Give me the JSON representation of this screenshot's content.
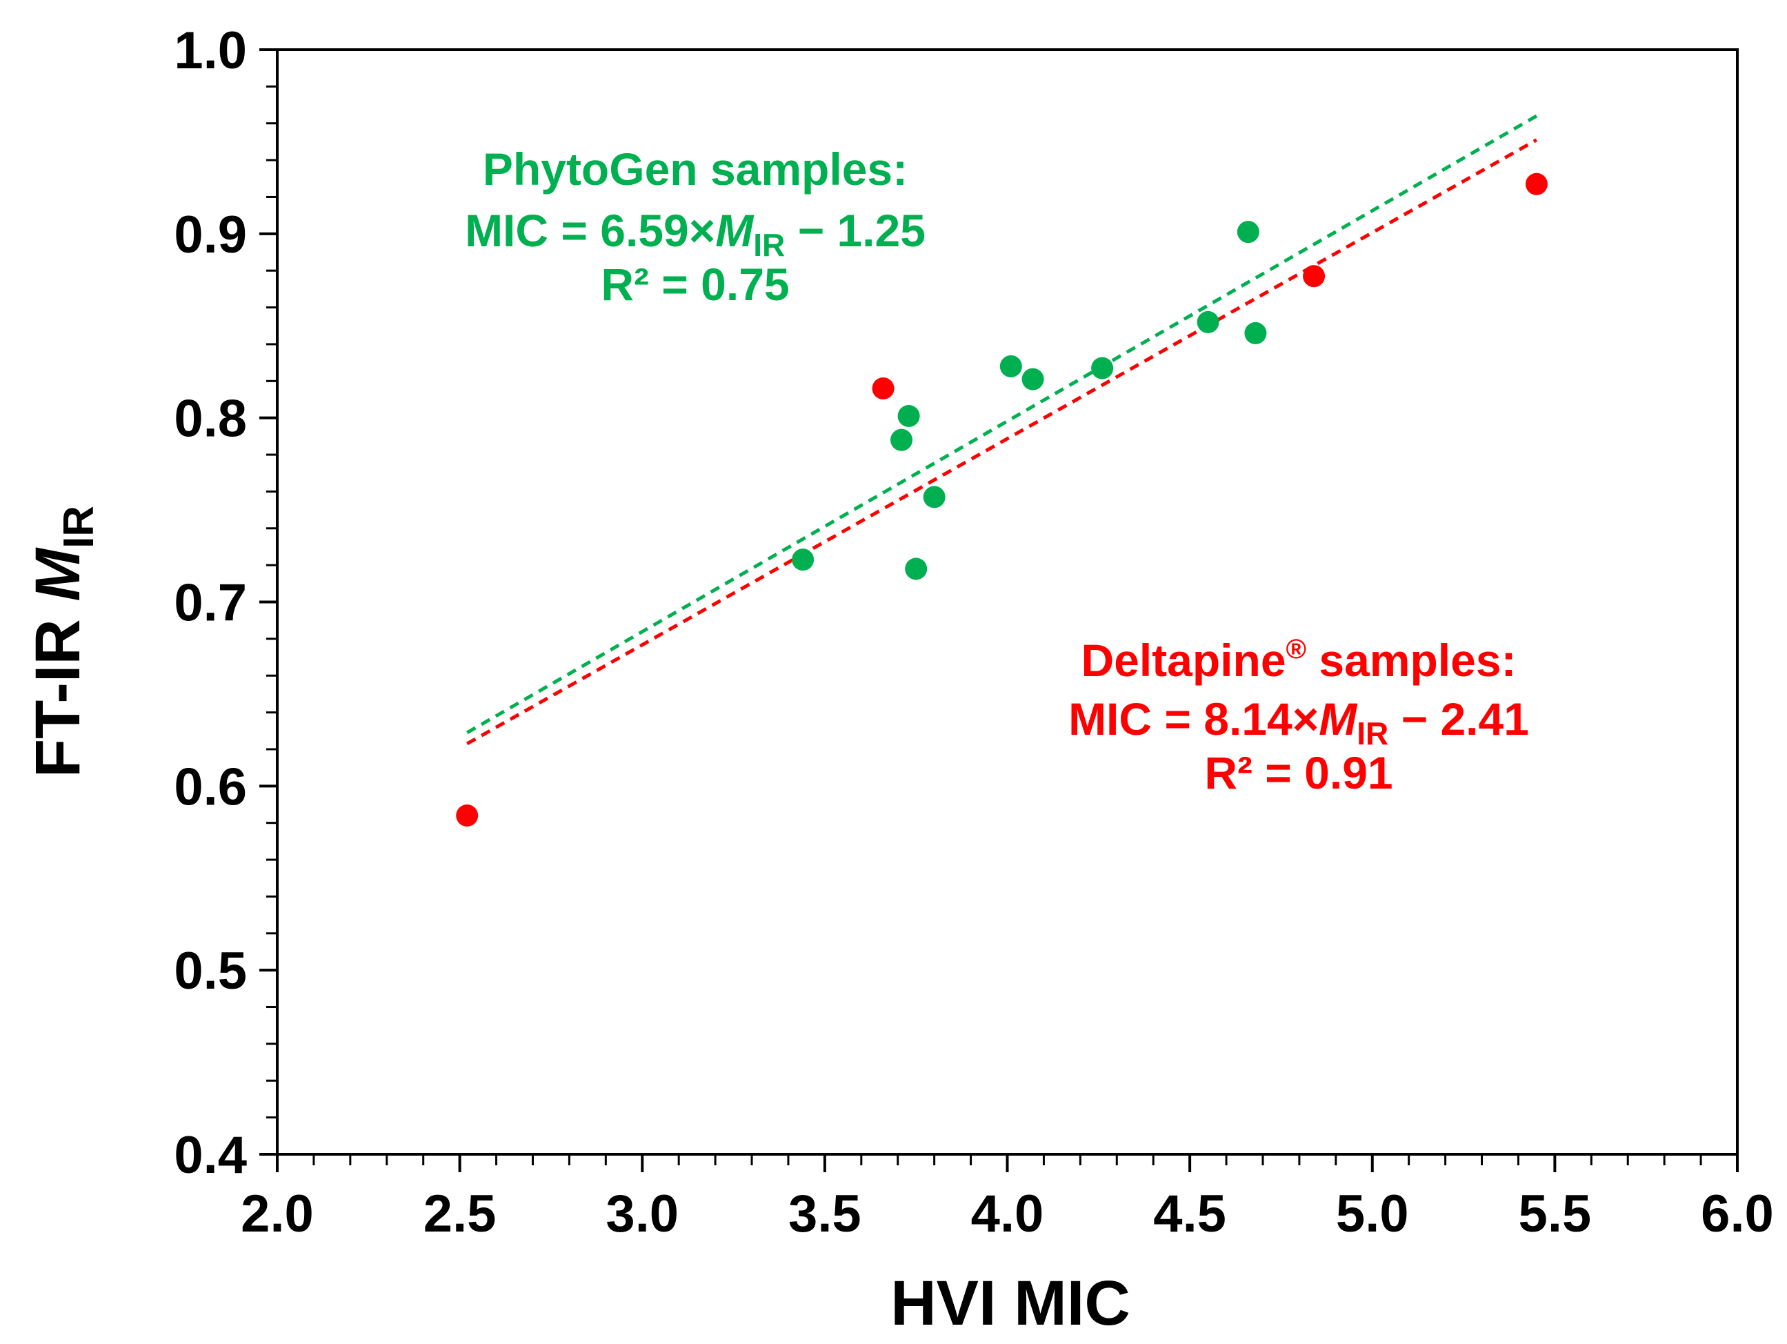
{
  "chart_data": {
    "type": "scatter",
    "title": "",
    "xlabel": "HVI MIC",
    "ylabel": {
      "prefix": "FT-IR ",
      "symbol": "M",
      "subscript": "IR"
    },
    "xlim": [
      2.0,
      6.0
    ],
    "ylim": [
      0.4,
      1.0
    ],
    "x_ticks": [
      "2.0",
      "2.5",
      "3.0",
      "3.5",
      "4.0",
      "4.5",
      "5.0",
      "5.5",
      "6.0"
    ],
    "y_ticks": [
      "0.4",
      "0.5",
      "0.6",
      "0.7",
      "0.8",
      "0.9",
      "1.0"
    ],
    "grid": false,
    "series": [
      {
        "name": "PhytoGen samples",
        "color": "#00b050",
        "points": [
          {
            "x": 3.44,
            "y": 0.723
          },
          {
            "x": 3.71,
            "y": 0.788
          },
          {
            "x": 3.73,
            "y": 0.801
          },
          {
            "x": 3.75,
            "y": 0.718
          },
          {
            "x": 3.8,
            "y": 0.757
          },
          {
            "x": 4.01,
            "y": 0.828
          },
          {
            "x": 4.07,
            "y": 0.821
          },
          {
            "x": 4.26,
            "y": 0.827
          },
          {
            "x": 4.55,
            "y": 0.852
          },
          {
            "x": 4.66,
            "y": 0.901
          },
          {
            "x": 4.68,
            "y": 0.846
          }
        ],
        "trendline": {
          "x": [
            2.52,
            5.45
          ],
          "y": [
            0.629,
            0.964
          ]
        },
        "annotation": {
          "line1": "PhytoGen samples:",
          "line2_prefix": "MIC = 6.59×",
          "line2_symbol": "M",
          "line2_sub": "IR",
          "line2_suffix": " − 1.25",
          "line3": "R² = 0.75"
        }
      },
      {
        "name": "Deltapine® samples",
        "color": "#ff0000",
        "points": [
          {
            "x": 2.52,
            "y": 0.584
          },
          {
            "x": 3.66,
            "y": 0.816
          },
          {
            "x": 4.84,
            "y": 0.877
          },
          {
            "x": 5.45,
            "y": 0.927
          }
        ],
        "trendline": {
          "x": [
            2.52,
            5.45
          ],
          "y": [
            0.623,
            0.951
          ]
        },
        "annotation": {
          "line1_name": "Deltapine",
          "line1_mark": "®",
          "line1_rest": " samples:",
          "line2_prefix": "MIC = 8.14×",
          "line2_symbol": "M",
          "line2_sub": "IR",
          "line2_suffix": " − 2.41",
          "line3": "R² = 0.91"
        }
      }
    ]
  }
}
